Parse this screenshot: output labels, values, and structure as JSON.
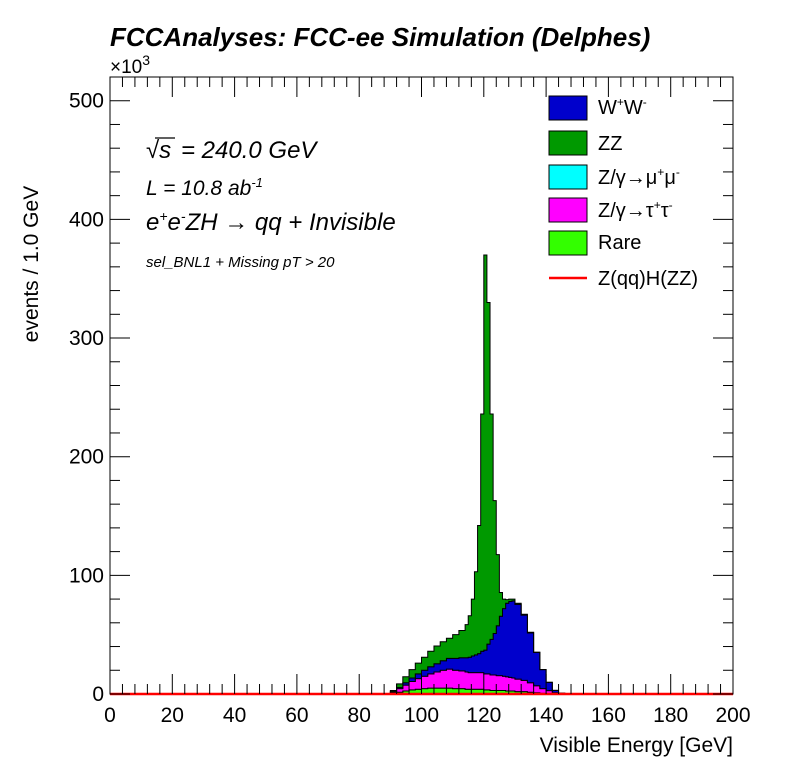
{
  "title": "FCCAnalyses: FCC-ee Simulation (Delphes)",
  "annotations": {
    "sqrt_s": "= 240.0 GeV",
    "lumi_prefix": "L = 10.8 ab",
    "lumi_exp": "-1",
    "process_main": "ZH  → qq + Invisible",
    "selection": "sel_BNL1 + Missing pT > 20"
  },
  "chart_data": {
    "type": "area",
    "stacked": true,
    "title": "FCCAnalyses: FCC-ee Simulation (Delphes)",
    "xlabel": "Visible Energy [GeV]",
    "ylabel": "events / 1.0 GeV",
    "y_multiplier": "×10^3",
    "xlim": [
      0,
      200
    ],
    "ylim": [
      0,
      520
    ],
    "x_ticks": [
      "0",
      "20",
      "40",
      "60",
      "80",
      "100",
      "120",
      "140",
      "160",
      "180",
      "200"
    ],
    "y_ticks": [
      "0",
      "100",
      "200",
      "300",
      "400",
      "500"
    ],
    "legend_position": "top-right",
    "x": [
      88,
      90,
      92,
      94,
      96,
      98,
      100,
      102,
      104,
      106,
      108,
      110,
      112,
      114,
      115,
      116,
      117,
      118,
      119,
      120,
      121,
      122,
      123,
      124,
      125,
      126,
      127,
      128,
      129,
      130,
      132,
      134,
      136,
      138,
      140,
      142,
      144,
      146
    ],
    "series": [
      {
        "name": "Rare",
        "color": "#33ff00",
        "values": [
          0,
          0.5,
          1.5,
          2.5,
          3.5,
          4,
          4.5,
          5,
          5,
          5,
          5,
          4.5,
          4.5,
          4,
          4,
          4,
          4,
          4,
          4,
          3.5,
          3.5,
          3,
          3,
          3,
          3,
          3,
          2.5,
          2.5,
          2.5,
          2,
          2,
          1.5,
          1,
          0.5,
          0.3,
          0.1,
          0,
          0
        ]
      },
      {
        "name": "Z/γ→τ+τ-",
        "color": "#ff00ff",
        "values": [
          0,
          1,
          3,
          5,
          7,
          9,
          10.5,
          12,
          13.5,
          15,
          16,
          15.5,
          15,
          14.5,
          14,
          14,
          14,
          14,
          14,
          13.5,
          13.5,
          13,
          13,
          12.5,
          12.5,
          12,
          12,
          11.5,
          11,
          10.5,
          9.5,
          8,
          6,
          4,
          2.5,
          1,
          0.2,
          0
        ]
      },
      {
        "name": "Z/γ→μ+μ-",
        "color": "#00ffff",
        "values": [
          0,
          0,
          0,
          0,
          0,
          0,
          0,
          0,
          0,
          0,
          0,
          0,
          0,
          0,
          0,
          0,
          0,
          0,
          0,
          0,
          0,
          0,
          0,
          0,
          0,
          0,
          0,
          0,
          0,
          0,
          0,
          0,
          0,
          0,
          0,
          0,
          0,
          0
        ]
      },
      {
        "name": "W+W-",
        "color": "#0000cc",
        "values": [
          0,
          0.5,
          1,
          2,
          3,
          4,
          5,
          6,
          7,
          8,
          9,
          10,
          11,
          12,
          13,
          14,
          15,
          16,
          18,
          20,
          25,
          30,
          35,
          42,
          50,
          57,
          62,
          64,
          65,
          63,
          55,
          42,
          28,
          16,
          7,
          2,
          0.5,
          0
        ]
      },
      {
        "name": "ZZ",
        "color": "#009900",
        "values": [
          0,
          1,
          3,
          5,
          7,
          9,
          11,
          13,
          15,
          16,
          17,
          20,
          23,
          28,
          35,
          48,
          70,
          108,
          200,
          333,
          288,
          190,
          112,
          60,
          20,
          8,
          3,
          2,
          1.5,
          1,
          0.7,
          0.5,
          0.3,
          0.2,
          0.1,
          0,
          0,
          0
        ]
      },
      {
        "name": "Z(qq)H(ZZ)",
        "color": "#ff0000",
        "style": "line",
        "values": [
          0,
          0,
          0,
          0,
          0,
          0,
          0,
          0,
          0,
          0,
          0,
          0,
          0,
          0,
          0,
          0,
          0,
          0,
          0,
          0,
          0,
          0,
          0,
          0,
          0,
          0,
          0,
          0,
          0,
          0,
          0,
          0,
          0,
          0,
          0,
          0,
          0,
          0
        ]
      }
    ]
  }
}
